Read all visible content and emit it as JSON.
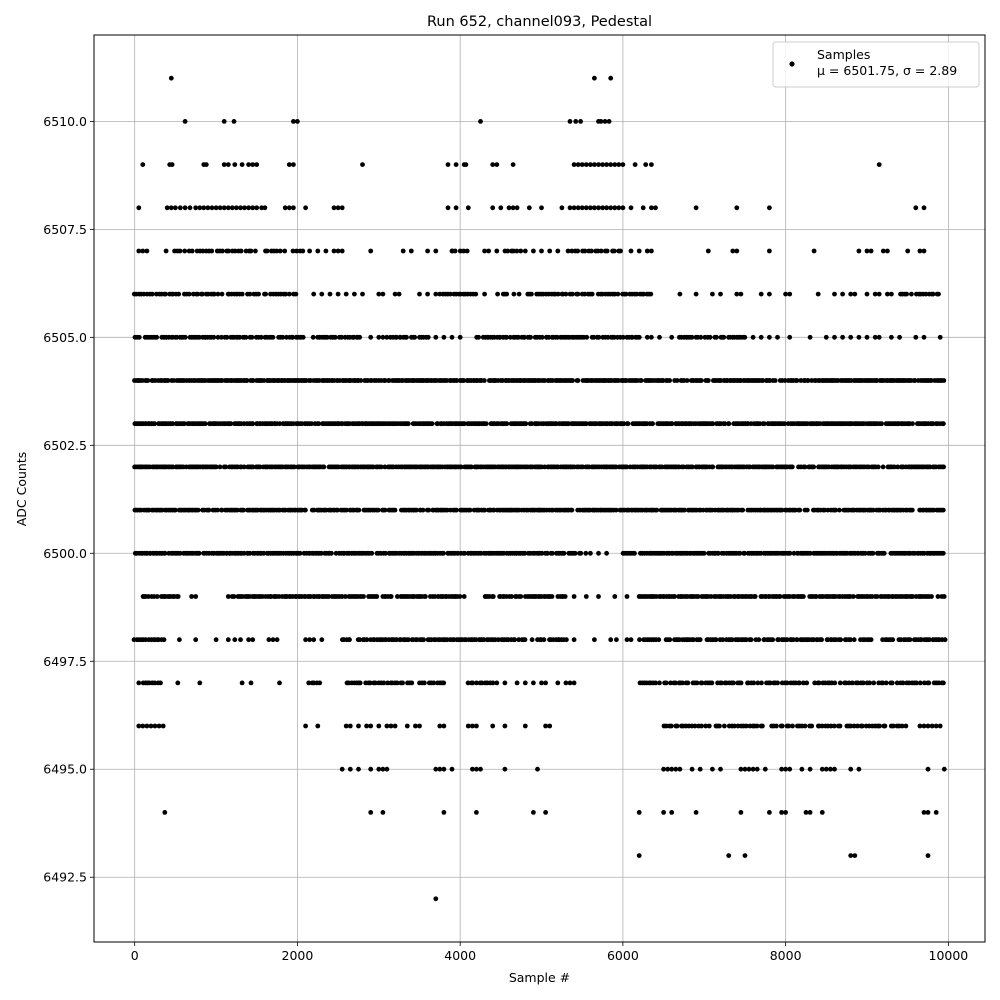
{
  "chart_data": {
    "type": "scatter",
    "title": "Run 652, channel093, Pedestal",
    "xlabel": "Sample #",
    "ylabel": "ADC Counts",
    "xlim": [
      -500,
      10450
    ],
    "ylim": [
      6491.0,
      6512.0
    ],
    "x_ticks": [
      0,
      2000,
      4000,
      6000,
      8000,
      10000
    ],
    "x_tick_labels": [
      "0",
      "2000",
      "4000",
      "6000",
      "8000",
      "10000"
    ],
    "y_ticks": [
      6492.5,
      6495.0,
      6497.5,
      6500.0,
      6502.5,
      6505.0,
      6507.5,
      6510.0
    ],
    "y_tick_labels": [
      "6492.5",
      "6495.0",
      "6497.5",
      "6500.0",
      "6502.5",
      "6505.0",
      "6507.5",
      "6510.0"
    ],
    "grid": true,
    "legend": {
      "placement": "top-right",
      "entries": [
        {
          "label": "Samples",
          "stats": "μ = 6501.75, σ = 2.89"
        }
      ]
    },
    "marker_color": "#000000",
    "series": [
      {
        "name": "Samples",
        "x_range": [
          0,
          9950
        ],
        "bands": [
          {
            "y": 6511,
            "points": [
              450,
              5650,
              5850
            ]
          },
          {
            "y": 6510,
            "points": [
              620,
              1100,
              1220,
              1950,
              2000,
              4250,
              5350,
              5420,
              5480,
              5700,
              5730,
              5780,
              5830
            ]
          },
          {
            "y": 6509,
            "points": [
              100,
              430,
              460,
              850,
              880,
              1100,
              1150,
              1230,
              1320,
              1400,
              1450,
              1500,
              1900,
              1950,
              2800,
              3850,
              3950,
              4050,
              4070,
              4400,
              4450,
              4650,
              5400,
              5450,
              5500,
              5550,
              5600,
              5650,
              5700,
              5750,
              5800,
              5850,
              5900,
              5950,
              6000,
              6150,
              6280,
              6350,
              9150
            ]
          },
          {
            "y": 6508,
            "points": [
              50,
              400,
              450,
              500,
              560,
              620,
              680,
              750,
              800,
              850,
              900,
              950,
              1000,
              1050,
              1100,
              1150,
              1200,
              1250,
              1300,
              1350,
              1400,
              1450,
              1500,
              1560,
              1600,
              1850,
              1900,
              1950,
              2100,
              2450,
              2500,
              2550,
              3850,
              3950,
              4100,
              4400,
              4500,
              4600,
              4650,
              4700,
              4850,
              5000,
              5250,
              5350,
              5400,
              5450,
              5500,
              5550,
              5600,
              5650,
              5700,
              5750,
              5800,
              5850,
              5900,
              5950,
              6000,
              6100,
              6250,
              6350,
              6400,
              6900,
              7400,
              7800,
              9600,
              9700
            ]
          },
          {
            "y": 6507,
            "dense_ranges": [
              [
                400,
                2100
              ],
              [
                3850,
                4100
              ],
              [
                4500,
                4750
              ],
              [
                5300,
                6000
              ]
            ],
            "density": 40,
            "points": [
              50,
              100,
              150,
              2150,
              2250,
              2350,
              2450,
              2500,
              2550,
              2900,
              3300,
              3400,
              3600,
              3700,
              3900,
              4300,
              4350,
              4450,
              4800,
              4900,
              5000,
              5100,
              5200,
              6100,
              6200,
              6300,
              6350,
              7050,
              7350,
              7400,
              7800,
              8350,
              8900,
              9000,
              9050,
              9200,
              9250,
              9500,
              9650,
              9700
            ]
          },
          {
            "y": 6506,
            "dense_ranges": [
              [
                0,
                2000
              ],
              [
                3800,
                4200
              ],
              [
                4400,
                6400
              ],
              [
                9400,
                9900
              ]
            ],
            "density": 30,
            "points": [
              2200,
              2300,
              2400,
              2500,
              2600,
              2700,
              2800,
              3000,
              3050,
              3200,
              3250,
              3500,
              3600,
              3700,
              3750,
              4300,
              6700,
              6900,
              7100,
              7200,
              7400,
              7450,
              7700,
              7800,
              8000,
              8050,
              8400,
              8600,
              8700,
              8800,
              8850,
              9000,
              9100,
              9150,
              9250,
              9300
            ]
          },
          {
            "y": 6505,
            "dense_ranges": [
              [
                0,
                2100
              ],
              [
                2200,
                2800
              ],
              [
                3100,
                3600
              ],
              [
                4200,
                6200
              ],
              [
                6700,
                7500
              ]
            ],
            "density": 25,
            "points": [
              2900,
              3000,
              3050,
              3700,
              3800,
              3900,
              4000,
              6300,
              6350,
              6450,
              6600,
              7600,
              7700,
              7800,
              7900,
              8050,
              8300,
              8500,
              8600,
              8700,
              8800,
              8900,
              9000,
              9100,
              9150,
              9300,
              9400,
              9600,
              9700,
              9900
            ]
          },
          {
            "y": 6504,
            "dense_ranges": [
              [
                0,
                9950
              ]
            ],
            "density": 18,
            "points": []
          },
          {
            "y": 6503,
            "dense_ranges": [
              [
                0,
                9950
              ]
            ],
            "density": 18,
            "points": []
          },
          {
            "y": 6502,
            "dense_ranges": [
              [
                0,
                9950
              ]
            ],
            "density": 18,
            "points": []
          },
          {
            "y": 6501,
            "dense_ranges": [
              [
                0,
                9950
              ]
            ],
            "density": 20,
            "points": []
          },
          {
            "y": 6500,
            "dense_ranges": [
              [
                0,
                5550
              ],
              [
                6000,
                9950
              ]
            ],
            "density": 20,
            "points": [
              5600,
              5700,
              5800
            ]
          },
          {
            "y": 6499,
            "dense_ranges": [
              [
                100,
                550
              ],
              [
                1200,
                4000
              ],
              [
                4300,
                5300
              ],
              [
                6200,
                9950
              ]
            ],
            "density": 22,
            "points": [
              700,
              750,
              1150,
              4050,
              5400,
              5550,
              5700,
              5900,
              6050
            ]
          },
          {
            "y": 6498,
            "dense_ranges": [
              [
                0,
                350
              ],
              [
                2550,
                5300
              ],
              [
                6200,
                9950
              ]
            ],
            "density": 25,
            "points": [
              550,
              750,
              1000,
              1150,
              1230,
              1300,
              1400,
              1450,
              1650,
              1700,
              1750,
              2100,
              2150,
              2200,
              2300,
              5400,
              5650,
              5850,
              5920,
              6050,
              6100
            ]
          },
          {
            "y": 6497,
            "dense_ranges": [
              [
                100,
                350
              ],
              [
                2150,
                2300
              ],
              [
                2600,
                3800
              ],
              [
                4100,
                4400
              ],
              [
                6200,
                9950
              ]
            ],
            "density": 30,
            "points": [
              50,
              530,
              800,
              1320,
              1430,
              1780,
              4450,
              4550,
              4700,
              4800,
              4900,
              5000,
              5050,
              5200,
              5300,
              5350,
              5400
            ]
          },
          {
            "y": 6496,
            "dense_ranges": [
              [
                6500,
                9500
              ]
            ],
            "density": 35,
            "points": [
              50,
              100,
              150,
              200,
              250,
              300,
              350,
              2100,
              2250,
              2600,
              2650,
              2750,
              2850,
              2900,
              3000,
              3100,
              3150,
              3200,
              3350,
              3450,
              3500,
              3750,
              3800,
              4100,
              4150,
              4200,
              4400,
              4550,
              4800,
              5050,
              5100,
              9650,
              9700,
              9750,
              9800,
              9850,
              9900
            ]
          },
          {
            "y": 6495,
            "points": [
              2550,
              2650,
              2750,
              2900,
              3000,
              3050,
              3100,
              3700,
              3750,
              3800,
              3900,
              4150,
              4200,
              4250,
              4550,
              4950,
              6500,
              6550,
              6600,
              6650,
              6700,
              6850,
              6950,
              7100,
              7200,
              7450,
              7500,
              7550,
              7600,
              7650,
              7750,
              7950,
              8000,
              8050,
              8200,
              8300,
              8450,
              8500,
              8550,
              8600,
              8800,
              8900,
              9750,
              9950
            ]
          },
          {
            "y": 6494,
            "points": [
              370,
              2900,
              3050,
              3800,
              4200,
              4900,
              5050,
              6200,
              6500,
              6600,
              6900,
              7450,
              7800,
              7950,
              8000,
              8250,
              8300,
              8450,
              9700,
              9750,
              9850
            ]
          },
          {
            "y": 6493,
            "points": [
              6200,
              7300,
              7500,
              8800,
              8850,
              9750
            ]
          },
          {
            "y": 6492,
            "points": [
              3700
            ]
          }
        ]
      }
    ]
  }
}
